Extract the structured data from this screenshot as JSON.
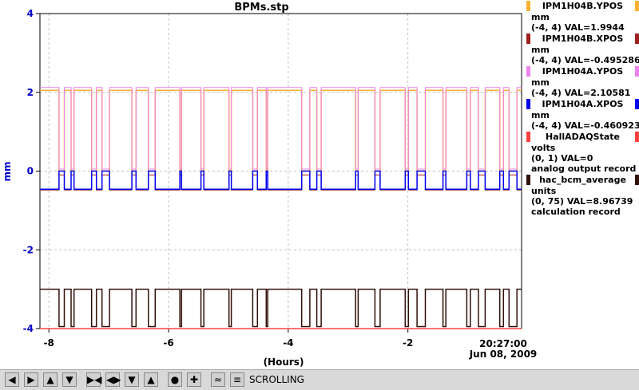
{
  "window": {
    "title": "BPMs.stp"
  },
  "chart_data": {
    "type": "line",
    "title": "BPMs.stp",
    "ylabel": "mm",
    "xlabel": "(Hours)",
    "ylim": [
      -4,
      4
    ],
    "xlim": [
      -8.15,
      -0.1
    ],
    "yticks": [
      "4",
      "2",
      "0",
      "-2",
      "-4"
    ],
    "xticks": [
      "-8",
      "-6",
      "-4",
      "-2"
    ],
    "grid": true,
    "x_annotations": [
      "20:27:00",
      "Jun 08, 2009"
    ],
    "series": [
      {
        "name": "IPM1H04B.YPOS",
        "color": "#ffb030",
        "values_desc": "switches between 2.05 and 0.0"
      },
      {
        "name": "IPM1H04B.XPOS",
        "color": "#a02020"
      },
      {
        "name": "IPM1H04A.YPOS",
        "color": "#ee82ee"
      },
      {
        "name": "IPM1H04A.XPOS",
        "color": "#0000ee"
      },
      {
        "name": "HallADAQState",
        "color": "#ff4040"
      },
      {
        "name": "hac_bcm_average",
        "color": "#301008"
      }
    ]
  },
  "legend": [
    {
      "label": "IPM1H04B.YPOS",
      "color": "#ffb030",
      "unit": "mm",
      "range": "(-4, 4) VAL=1.9944"
    },
    {
      "label": "IPM1H04B.XPOS",
      "color": "#a02020",
      "unit": "mm",
      "range": "(-4, 4) VAL=-0.495286"
    },
    {
      "label": "IPM1H04A.YPOS",
      "color": "#ee82ee",
      "unit": "mm",
      "range": "(-4, 4) VAL=2.10581"
    },
    {
      "label": "IPM1H04A.XPOS",
      "color": "#0000ee",
      "unit": "mm",
      "range": "(-4, 4) VAL=-0.460923"
    },
    {
      "label": "HallADAQState",
      "color": "#ff4040",
      "unit": "volts",
      "range": "(0, 1) VAL=0",
      "note": "analog output record"
    },
    {
      "label": "hac_bcm_average",
      "color": "#301008",
      "unit": "units",
      "range": "(0, 75) VAL=8.96739",
      "note": "calculation record"
    }
  ],
  "time": {
    "clock": "20:27:00",
    "date": "Jun 08, 2009"
  },
  "toolbar": {
    "status": "SCROLLING",
    "buttons": [
      "pan-left",
      "pan-right",
      "pan-up",
      "pan-down",
      "zoom-in-x",
      "zoom-out-x",
      "zoom-in-y",
      "zoom-out-y",
      "autoscale",
      "crosshair",
      "print-graph",
      "style"
    ]
  }
}
